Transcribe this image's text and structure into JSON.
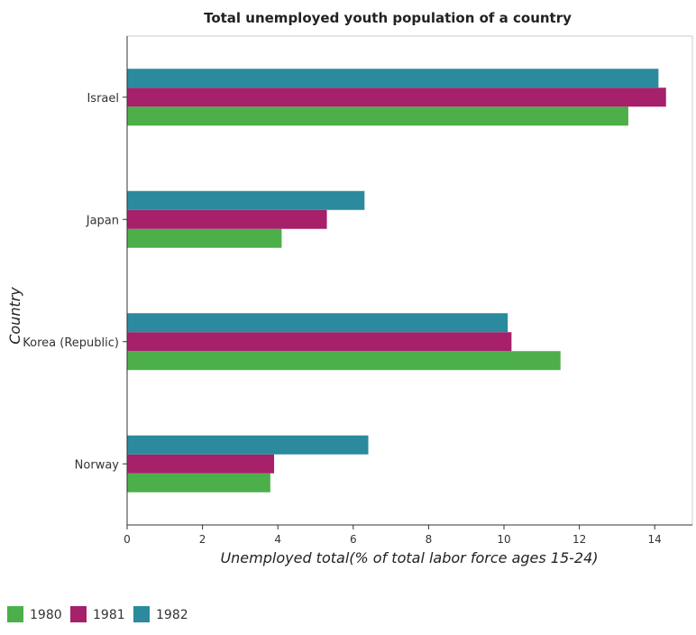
{
  "chart_data": {
    "type": "bar",
    "orientation": "horizontal",
    "title": "Total unemployed youth population of a country",
    "xlabel": "Unemployed total(% of total labor force ages 15-24)",
    "ylabel": "Country",
    "xlim": [
      0,
      15
    ],
    "xticks": [
      0,
      2,
      4,
      6,
      8,
      10,
      12,
      14
    ],
    "categories": [
      "Israel",
      "Japan",
      "Korea (Republic)",
      "Norway"
    ],
    "series": [
      {
        "name": "1980",
        "color": "#4daf4a",
        "values": [
          13.3,
          4.1,
          11.5,
          3.8
        ]
      },
      {
        "name": "1981",
        "color": "#a6206a",
        "values": [
          14.3,
          5.3,
          10.2,
          3.9
        ]
      },
      {
        "name": "1982",
        "color": "#2b8a9e",
        "values": [
          14.1,
          6.3,
          10.1,
          6.4
        ]
      }
    ],
    "legend_position": "bottom-left",
    "grid": false
  }
}
